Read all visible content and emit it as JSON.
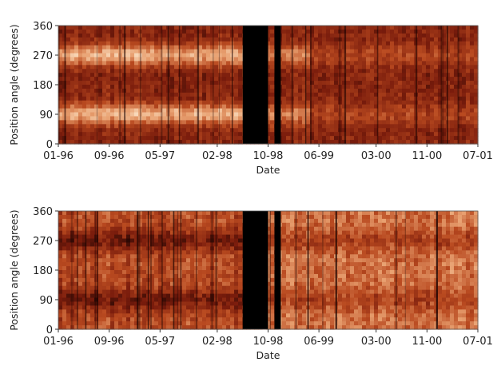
{
  "chart_data": [
    {
      "type": "heatmap",
      "title": "",
      "xlabel": "Date",
      "ylabel": "Position angle (degrees)",
      "x_ticks": [
        "01-96",
        "09-96",
        "05-97",
        "02-98",
        "10-98",
        "06-99",
        "03-00",
        "11-00",
        "07-01"
      ],
      "y_ticks": [
        0,
        90,
        180,
        270,
        360
      ],
      "ylim": [
        0,
        360
      ],
      "xlim": [
        "01-96",
        "07-01"
      ],
      "data_gaps": [
        [
          "06-98",
          "10-98"
        ],
        [
          "11-98",
          "12-98"
        ]
      ],
      "bright_bands_deg": [
        90,
        270
      ],
      "colormap": [
        "#200603",
        "#7a1c0c",
        "#b94a20",
        "#e8a070",
        "#fff0d8"
      ]
    },
    {
      "type": "heatmap",
      "title": "",
      "xlabel": "Date",
      "ylabel": "Position angle (degrees)",
      "x_ticks": [
        "01-96",
        "09-96",
        "05-97",
        "02-98",
        "10-98",
        "06-99",
        "03-00",
        "11-00",
        "07-01"
      ],
      "y_ticks": [
        0,
        90,
        180,
        270,
        360
      ],
      "ylim": [
        0,
        360
      ],
      "xlim": [
        "01-96",
        "07-01"
      ],
      "data_gaps": [
        [
          "06-98",
          "10-98"
        ],
        [
          "11-98",
          "12-98"
        ]
      ],
      "dark_bands_deg": [
        90,
        270
      ],
      "colormap": [
        "#200603",
        "#7a1c0c",
        "#b94a20",
        "#e8a070",
        "#fff0d8"
      ]
    }
  ]
}
